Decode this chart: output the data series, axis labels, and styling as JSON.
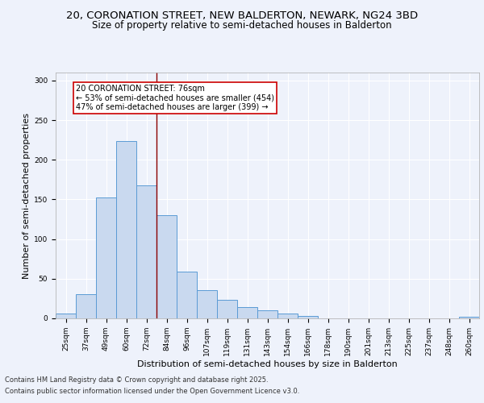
{
  "title_line1": "20, CORONATION STREET, NEW BALDERTON, NEWARK, NG24 3BD",
  "title_line2": "Size of property relative to semi-detached houses in Balderton",
  "xlabel": "Distribution of semi-detached houses by size in Balderton",
  "ylabel": "Number of semi-detached properties",
  "categories": [
    "25sqm",
    "37sqm",
    "49sqm",
    "60sqm",
    "72sqm",
    "84sqm",
    "96sqm",
    "107sqm",
    "119sqm",
    "131sqm",
    "143sqm",
    "154sqm",
    "166sqm",
    "178sqm",
    "190sqm",
    "201sqm",
    "213sqm",
    "225sqm",
    "237sqm",
    "248sqm",
    "260sqm"
  ],
  "values": [
    6,
    30,
    152,
    224,
    168,
    130,
    59,
    36,
    23,
    14,
    10,
    6,
    3,
    0,
    0,
    0,
    0,
    0,
    0,
    0,
    2
  ],
  "bar_color": "#c9d9ef",
  "bar_edge_color": "#5b9bd5",
  "vline_x": 4.5,
  "vline_color": "#8b0000",
  "annotation_title": "20 CORONATION STREET: 76sqm",
  "annotation_line1": "← 53% of semi-detached houses are smaller (454)",
  "annotation_line2": "47% of semi-detached houses are larger (399) →",
  "annotation_box_color": "#ffffff",
  "annotation_box_edgecolor": "#cc0000",
  "footnote_line1": "Contains HM Land Registry data © Crown copyright and database right 2025.",
  "footnote_line2": "Contains public sector information licensed under the Open Government Licence v3.0.",
  "ylim": [
    0,
    310
  ],
  "bg_color": "#eef2fb",
  "plot_bg_color": "#eef2fb",
  "grid_color": "#ffffff",
  "title_fontsize": 9.5,
  "subtitle_fontsize": 8.5,
  "axis_label_fontsize": 8,
  "tick_fontsize": 6.5,
  "annotation_fontsize": 7,
  "footnote_fontsize": 6
}
